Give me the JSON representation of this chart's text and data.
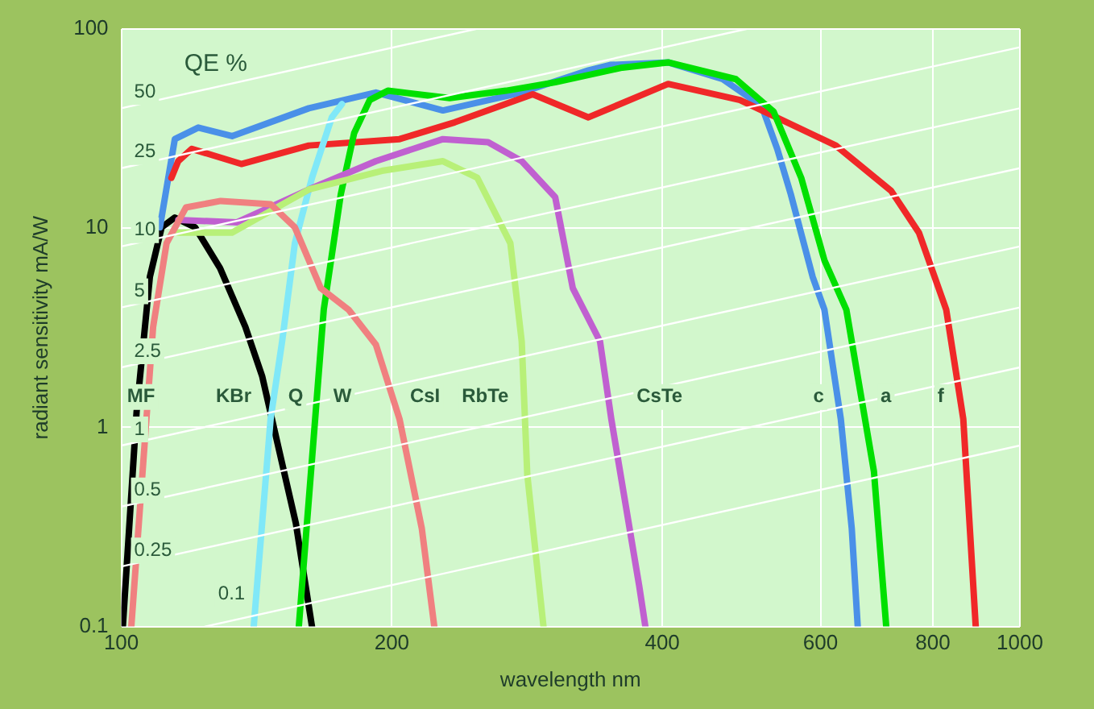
{
  "chart_data": {
    "type": "line",
    "xlabel": "wavelength nm",
    "ylabel": "radiant sensitivity mA/W",
    "log": "xy",
    "xlim": [
      100,
      1000
    ],
    "xticks": [
      100,
      200,
      400,
      600,
      800,
      1000
    ],
    "ylim": [
      0.1,
      100
    ],
    "yticks": [
      0.1,
      1,
      10,
      100
    ],
    "grid": true,
    "legend": false,
    "marker": "none",
    "line_style": "solid",
    "series": [
      {
        "name": "50",
        "color": "#ffffff",
        "x": [
          100,
          248
        ],
        "values": [
          40,
          100
        ]
      },
      {
        "name": "25",
        "color": "#ffffff",
        "x": [
          100,
          496
        ],
        "values": [
          20,
          100
        ]
      },
      {
        "name": "10",
        "color": "#ffffff",
        "x": [
          100,
          1000
        ],
        "values": [
          8.1,
          81
        ]
      },
      {
        "name": "5",
        "color": "#ffffff",
        "x": [
          100,
          1000
        ],
        "values": [
          4.0,
          40
        ]
      },
      {
        "name": "2.5",
        "color": "#ffffff",
        "x": [
          100,
          1000
        ],
        "values": [
          2.0,
          20
        ]
      },
      {
        "name": "1",
        "color": "#ffffff",
        "x": [
          100,
          1000
        ],
        "values": [
          0.81,
          8.1
        ]
      },
      {
        "name": "0.5",
        "color": "#ffffff",
        "x": [
          100,
          1000
        ],
        "values": [
          0.4,
          4.0
        ]
      },
      {
        "name": "0.25",
        "color": "#ffffff",
        "x": [
          100,
          1000
        ],
        "values": [
          0.2,
          2.0
        ]
      },
      {
        "name": "0.1",
        "color": "#ffffff",
        "x": [
          124,
          1000
        ],
        "values": [
          0.1,
          0.81
        ]
      },
      {
        "color": "#f08080",
        "x": [
          102.6,
          108.5,
          112.3,
          118,
          129,
          146.6,
          156,
          166.7,
          179,
          192,
          204,
          216,
          223
        ],
        "values": [
          0.1,
          3.2,
          8.4,
          12.7,
          13.7,
          13.2,
          10.1,
          5.0,
          3.9,
          2.6,
          1.1,
          0.31,
          0.1
        ]
      },
      {
        "color": "#b8f078",
        "x": [
          115.7,
          132.8,
          162,
          195,
          228,
          249,
          271,
          279,
          283,
          295
        ],
        "values": [
          9.5,
          9.5,
          15.7,
          19.4,
          21.7,
          17.9,
          8.4,
          2.7,
          0.58,
          0.1
        ]
      },
      {
        "color": "#c060d0",
        "x": [
          115.7,
          134.5,
          162,
          192,
          228,
          256,
          279,
          304,
          318,
          341,
          351,
          377,
          383
        ],
        "values": [
          11,
          10.7,
          15.7,
          21.7,
          28,
          27,
          21.7,
          14.3,
          5.0,
          2.7,
          1.1,
          0.16,
          0.1
        ]
      },
      {
        "color": "#80e8f8",
        "x": [
          140.4,
          146.6,
          151,
          156,
          163,
          171.5,
          176
        ],
        "values": [
          0.1,
          1.1,
          2.7,
          8.4,
          17.9,
          36,
          42
        ]
      },
      {
        "color": "#00e000",
        "x": [
          157.6,
          168,
          175.5,
          181.6,
          189,
          198,
          232,
          268,
          304,
          361,
          406,
          483,
          532,
          571,
          606,
          641,
          688,
          710
        ],
        "values": [
          0.1,
          3.9,
          14.8,
          30,
          44,
          49,
          45,
          49,
          54,
          64,
          68,
          56,
          38.5,
          17.9,
          6.9,
          3.9,
          0.6,
          0.1
        ]
      },
      {
        "color": "#f02828",
        "x": [
          113.7,
          115.7,
          119.8,
          136,
          161.7,
          204,
          235,
          287,
          331,
          406,
          488,
          624,
          719,
          772,
          828,
          865,
          893
        ],
        "values": [
          17.9,
          21.7,
          25,
          21,
          26,
          28,
          34,
          47,
          36,
          53,
          44,
          26,
          15.4,
          9.5,
          3.9,
          1.1,
          0.1
        ]
      },
      {
        "color": "#4a90e8",
        "x": [
          110.4,
          114.7,
          121.8,
          132.8,
          161.7,
          192,
          228,
          279,
          331,
          350,
          406,
          467,
          516,
          537,
          556,
          588,
          606,
          632,
          650,
          660
        ],
        "values": [
          10.1,
          28,
          32,
          29,
          40,
          48,
          39,
          48,
          62,
          66,
          68,
          56,
          41,
          25,
          14.8,
          5.7,
          3.9,
          1.1,
          0.31,
          0.1
        ]
      },
      {
        "color": "#000000",
        "x": [
          100.4,
          104,
          107.6,
          110.9,
          114.7,
          120.8,
          128.8,
          137.4,
          143.5,
          149.8,
          156.4,
          163
        ],
        "values": [
          0.1,
          1.2,
          5.7,
          10.1,
          11.3,
          10.1,
          6.3,
          3.2,
          1.8,
          0.77,
          0.33,
          0.1
        ]
      }
    ],
    "annotations": [
      "QE %",
      "MF",
      "KBr",
      "Q",
      "W",
      "CsI",
      "RbTe",
      "CsTe",
      "c",
      "a",
      "f"
    ]
  }
}
